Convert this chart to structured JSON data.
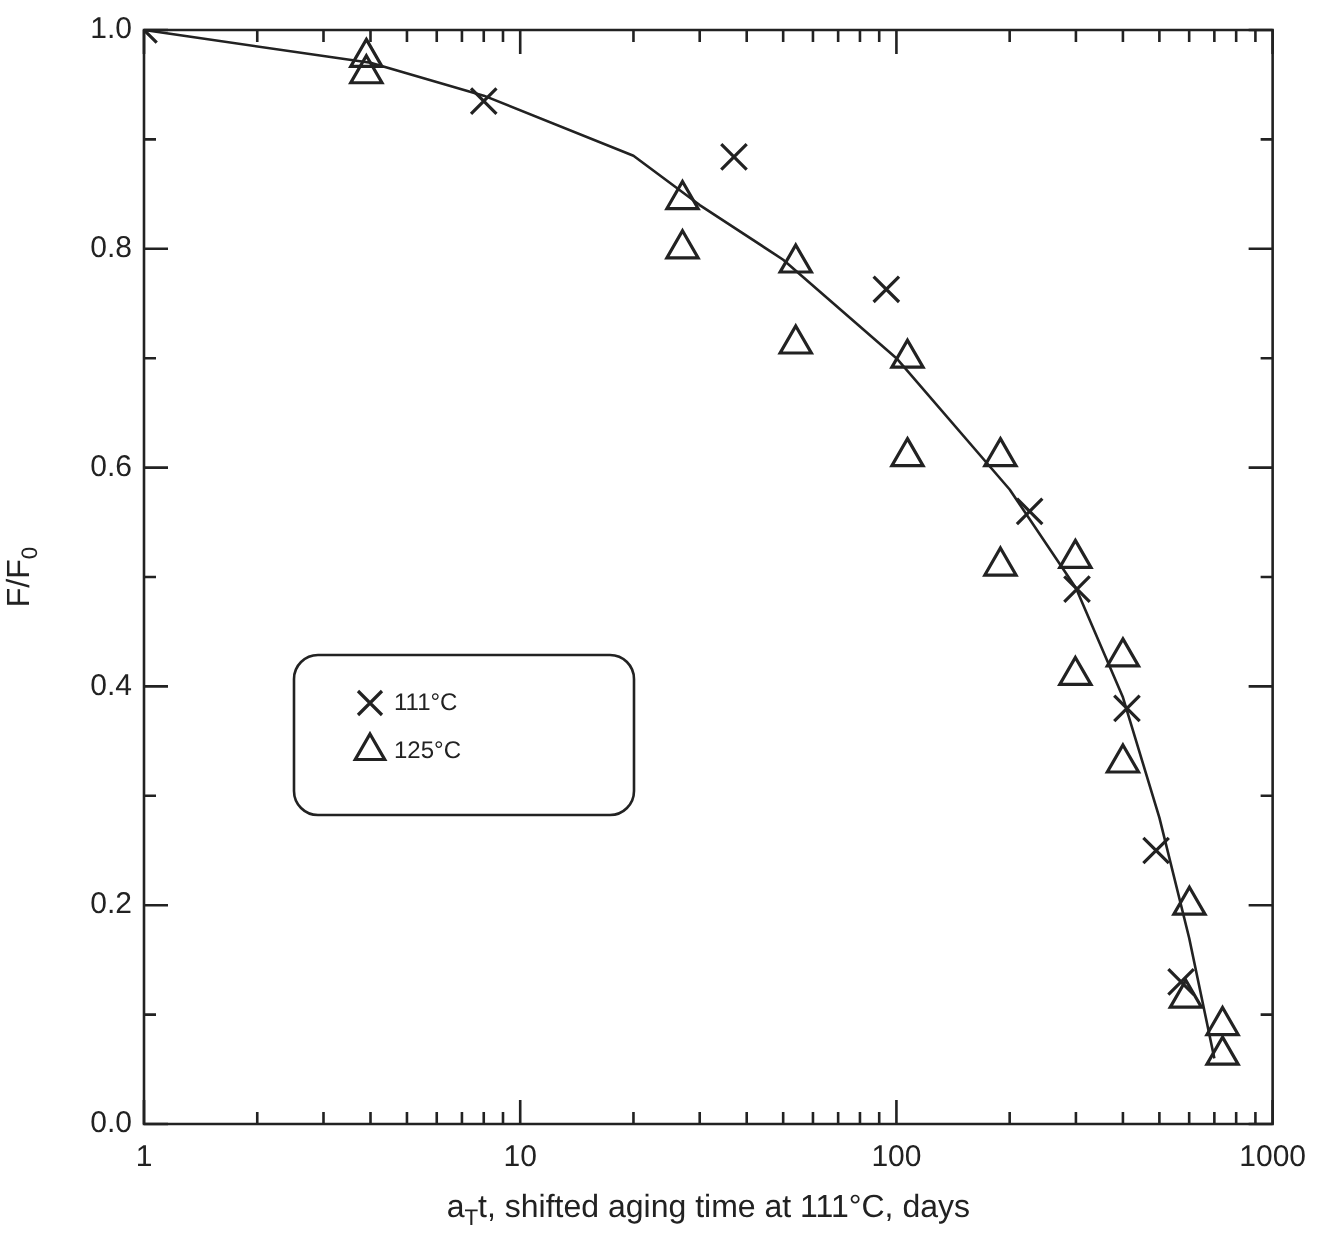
{
  "chart_data": {
    "type": "scatter",
    "xlabel": "a$_{T}$t, shifted aging time at 111°C, days",
    "ylabel": "F/F$_{0}$",
    "log": "x",
    "grid": false,
    "legend": "center left",
    "xlim": [
      1,
      1000
    ],
    "ylim": [
      0,
      1.0
    ],
    "xticks": [
      1,
      {
        "value": 2,
        "label": null
      },
      {
        "value": 3,
        "label": null
      },
      {
        "value": 4,
        "label": null
      },
      {
        "value": 5,
        "label": null
      },
      {
        "value": 6,
        "label": null
      },
      {
        "value": 7,
        "label": null
      },
      {
        "value": 8,
        "label": null
      },
      {
        "value": 9,
        "label": null
      },
      10,
      {
        "value": 20,
        "label": null
      },
      {
        "value": 30,
        "label": null
      },
      {
        "value": 40,
        "label": null
      },
      {
        "value": 50,
        "label": null
      },
      {
        "value": 60,
        "label": null
      },
      {
        "value": 70,
        "label": null
      },
      {
        "value": 80,
        "label": null
      },
      {
        "value": 90,
        "label": null
      },
      100,
      {
        "value": 200,
        "label": null
      },
      {
        "value": 300,
        "label": null
      },
      {
        "value": 400,
        "label": null
      },
      {
        "value": 500,
        "label": null
      },
      {
        "value": 600,
        "label": null
      },
      {
        "value": 700,
        "label": null
      },
      {
        "value": 800,
        "label": null
      },
      {
        "value": 900,
        "label": null
      },
      1000
    ],
    "yticks": [
      {
        "value": 0,
        "label": "0.0"
      },
      {
        "value": 0.1,
        "label": null
      },
      0.2,
      {
        "value": 0.3,
        "label": null
      },
      0.4,
      {
        "value": 0.5,
        "label": null
      },
      0.6,
      {
        "value": 0.7,
        "label": null
      },
      0.8,
      {
        "value": 0.9,
        "label": null
      },
      {
        "value": 1.0,
        "label": "1.0"
      }
    ],
    "series": [
      {
        "name": "111°C",
        "marker": "cross",
        "color": "#222222",
        "x": [
          1,
          8,
          37,
          94,
          226,
          302,
          410,
          490,
          571
        ],
        "values": [
          1.0,
          0.935,
          0.884,
          0.763,
          0.56,
          0.489,
          0.38,
          0.25,
          0.13
        ]
      },
      {
        "name": "125°C",
        "marker": "triangle",
        "color": "#222222",
        "x": [
          3.9,
          3.9,
          27,
          27,
          54,
          54,
          107,
          107,
          189,
          189,
          299,
          299,
          400,
          400,
          601,
          588,
          736,
          736
        ],
        "values": [
          0.975,
          0.96,
          0.845,
          0.8,
          0.787,
          0.713,
          0.7,
          0.61,
          0.61,
          0.51,
          0.517,
          0.41,
          0.427,
          0.33,
          0.2,
          0.115,
          0.09,
          0.063
        ]
      },
      {
        "type": "line",
        "marker": "none",
        "line_style": "solid",
        "color": "#222222",
        "x": [
          1,
          4,
          8,
          20,
          30,
          50,
          100,
          200,
          300,
          400,
          500,
          600,
          700
        ],
        "values": [
          1.0,
          0.97,
          0.94,
          0.885,
          0.84,
          0.79,
          0.7,
          0.58,
          0.49,
          0.39,
          0.28,
          0.17,
          0.06
        ]
      }
    ]
  }
}
